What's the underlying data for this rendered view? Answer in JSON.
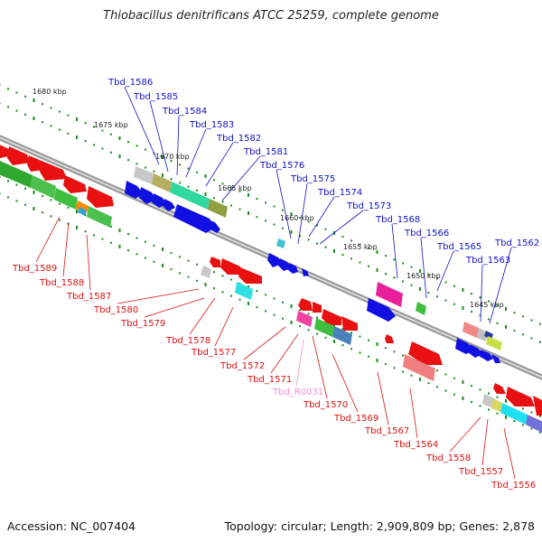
{
  "title": "Thiobacillus denitrificans ATCC 25259, complete genome",
  "footer": {
    "accession": "Accession: NC_007404",
    "summary": "Topology: circular; Length: 2,909,809 bp; Genes: 2,878"
  },
  "kbp_ticks": [
    "1680 kbp",
    "1675 kbp",
    "1670 kbp",
    "1665 kbp",
    "1660 kbp",
    "1655 kbp",
    "1650 kbp",
    "1645 kbp"
  ],
  "upper_labels": [
    "Tbd_1586",
    "Tbd_1585",
    "Tbd_1584",
    "Tbd_1583",
    "Tbd_1582",
    "Tbd_1581",
    "Tbd_1576",
    "Tbd_1575",
    "Tbd_1574",
    "Tbd_1573",
    "Tbd_1568",
    "Tbd_1566",
    "Tbd_1565",
    "Tbd_1563",
    "Tbd_1562"
  ],
  "lower_labels": [
    "Tbd_1589",
    "Tbd_1588",
    "Tbd_1587",
    "Tbd_1580",
    "Tbd_1579",
    "Tbd_1578",
    "Tbd_1577",
    "Tbd_1572",
    "Tbd_1571",
    "Tbd_R0031",
    "Tbd_1570",
    "Tbd_1569",
    "Tbd_1567",
    "Tbd_1564",
    "Tbd_1558",
    "Tbd_1557",
    "Tbd_1556"
  ],
  "colors": {
    "forward_label": "#1010c8",
    "reverse_label": "#dd1010",
    "rna_label": "#f090c8",
    "backbone": "#888888",
    "tick_dots": "#1a8a1a"
  }
}
